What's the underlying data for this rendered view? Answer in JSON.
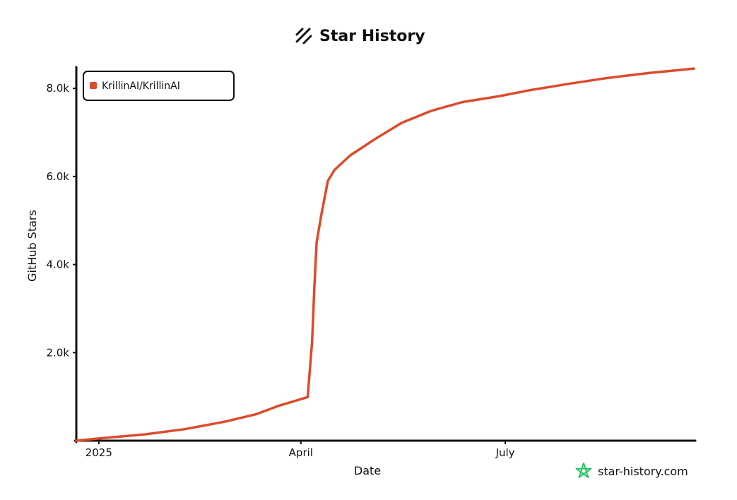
{
  "chart_data": {
    "type": "line",
    "title": "Star History",
    "xlabel": "Date",
    "ylabel": "GitHub Stars",
    "x_ticks": [
      {
        "date": "2025-01-01",
        "label": "2025"
      },
      {
        "date": "2025-04-01",
        "label": "April"
      },
      {
        "date": "2025-07-01",
        "label": "July"
      }
    ],
    "y_ticks": [
      {
        "value": 2000,
        "label": "2.0k"
      },
      {
        "value": 4000,
        "label": "4.0k"
      },
      {
        "value": 6000,
        "label": "6.0k"
      },
      {
        "value": 8000,
        "label": "8.0k"
      }
    ],
    "xlim": [
      "2024-12-22",
      "2025-09-23"
    ],
    "ylim": [
      0,
      8500
    ],
    "grid": false,
    "legend": {
      "placement": "top-left"
    },
    "series": [
      {
        "name": "KrillinAI/KrillinAI",
        "color": "#dd4b2b",
        "points": [
          {
            "x": "2024-12-22",
            "y": 0
          },
          {
            "x": "2025-01-03",
            "y": 60
          },
          {
            "x": "2025-01-21",
            "y": 140
          },
          {
            "x": "2025-02-08",
            "y": 260
          },
          {
            "x": "2025-02-26",
            "y": 430
          },
          {
            "x": "2025-03-12",
            "y": 600
          },
          {
            "x": "2025-03-22",
            "y": 790
          },
          {
            "x": "2025-04-04",
            "y": 990
          },
          {
            "x": "2025-04-06",
            "y": 2250
          },
          {
            "x": "2025-04-07",
            "y": 3500
          },
          {
            "x": "2025-04-08",
            "y": 4500
          },
          {
            "x": "2025-04-10",
            "y": 5100
          },
          {
            "x": "2025-04-13",
            "y": 5900
          },
          {
            "x": "2025-04-16",
            "y": 6150
          },
          {
            "x": "2025-04-23",
            "y": 6480
          },
          {
            "x": "2025-05-04",
            "y": 6850
          },
          {
            "x": "2025-05-16",
            "y": 7220
          },
          {
            "x": "2025-05-29",
            "y": 7490
          },
          {
            "x": "2025-06-12",
            "y": 7690
          },
          {
            "x": "2025-06-28",
            "y": 7820
          },
          {
            "x": "2025-07-12",
            "y": 7960
          },
          {
            "x": "2025-07-30",
            "y": 8110
          },
          {
            "x": "2025-08-16",
            "y": 8240
          },
          {
            "x": "2025-09-03",
            "y": 8350
          },
          {
            "x": "2025-09-23",
            "y": 8450
          }
        ]
      }
    ]
  },
  "branding": {
    "watermark": "star-history.com",
    "watermark_color": "#22c55e",
    "title_icon": "star-history-logo-icon",
    "watermark_icon": "star-outline-icon"
  }
}
